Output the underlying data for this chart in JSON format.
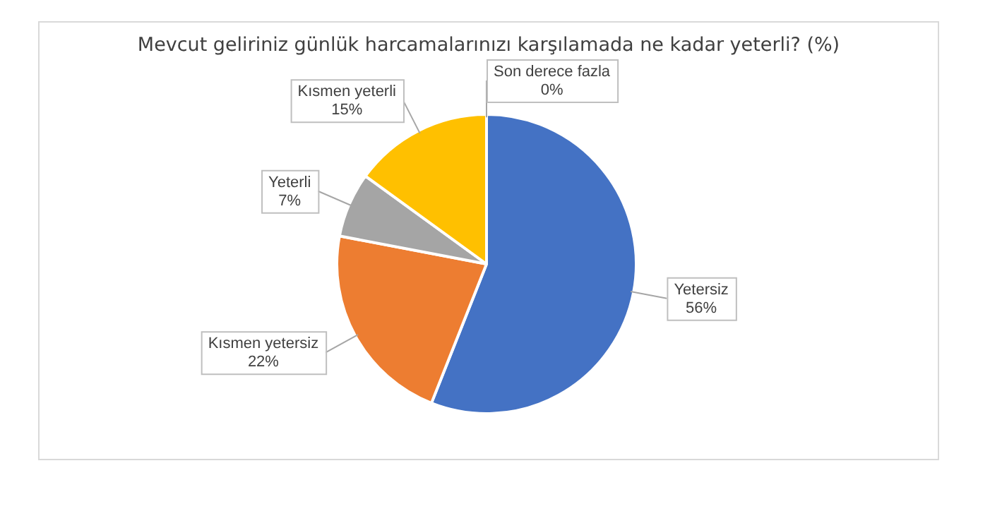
{
  "chart_data": {
    "type": "pie",
    "title": "Mevcut geliriniz günlük harcamalarınızı karşılamada ne kadar yeterli? (%)",
    "categories": [
      "Yetersiz",
      "Kısmen yetersiz",
      "Yeterli",
      "Kısmen yeterli",
      "Son derece fazla"
    ],
    "values": [
      56,
      22,
      7,
      15,
      0
    ],
    "colors": [
      "#4472c4",
      "#ed7d31",
      "#a5a5a5",
      "#ffc000",
      "#5b9bd5"
    ],
    "value_labels": [
      "56%",
      "22%",
      "7%",
      "15%",
      "0%"
    ],
    "legend": false
  }
}
